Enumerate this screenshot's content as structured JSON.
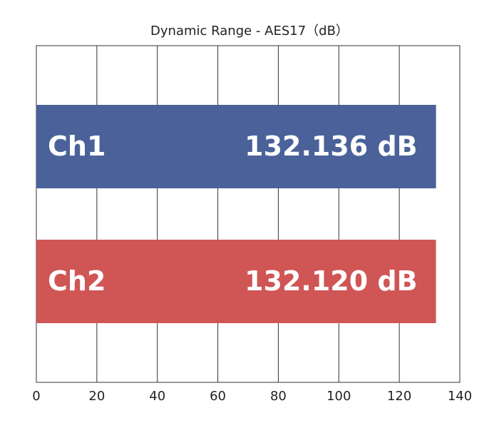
{
  "chart_data": {
    "type": "hbar",
    "title": "Dynamic Range - AES17（dB）",
    "categories": [
      "Ch1",
      "Ch2"
    ],
    "values": [
      132.136,
      132.12
    ],
    "value_labels": [
      "132.136 dB",
      "132.120 dB"
    ],
    "colors": [
      "#4a6299",
      "#d05555"
    ],
    "xlim": [
      0,
      140
    ],
    "xticks": [
      0,
      20,
      40,
      60,
      80,
      100,
      120,
      140
    ],
    "grid": true
  }
}
